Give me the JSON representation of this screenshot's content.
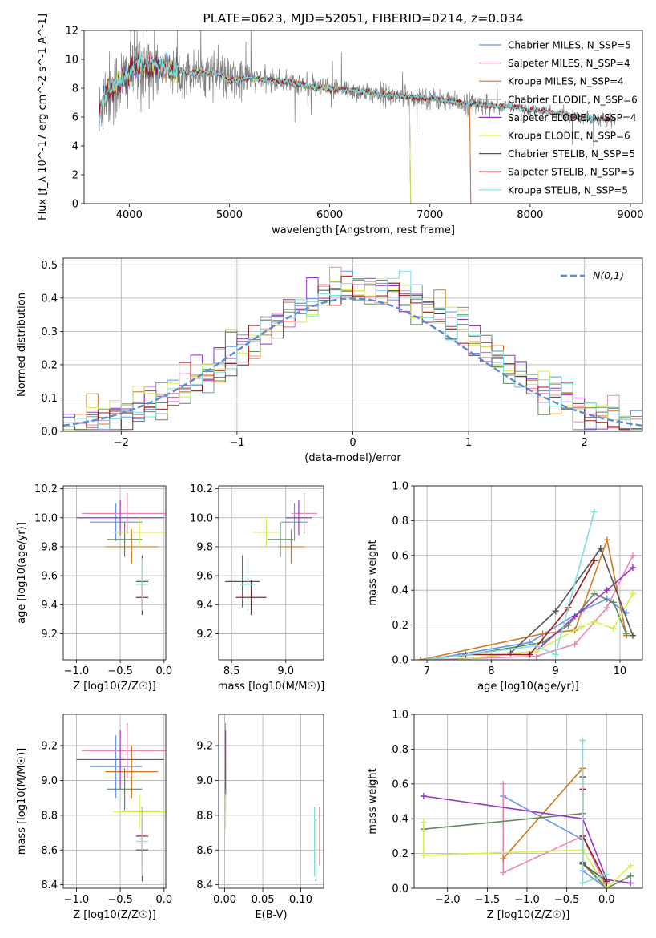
{
  "chart_data": [
    {
      "id": "spectrum",
      "type": "line",
      "title": "PLATE=0623, MJD=52051, FIBERID=0214, z=0.034",
      "xlabel": "wavelength [Angstrom, rest frame]",
      "ylabel": "Flux [f_λ 10^-17 erg cm^-2 s^-1 A^-1]",
      "xlim": [
        3550,
        9120
      ],
      "ylim": [
        0,
        12
      ],
      "xticks": [
        4000,
        5000,
        6000,
        7000,
        8000,
        9000
      ],
      "yticks": [
        0,
        2,
        4,
        6,
        8,
        10,
        12
      ],
      "grid": false,
      "legend_position": "top-right",
      "legend": [
        {
          "label": "Chabrier MILES, N_SSP=5",
          "color": "#6495ED"
        },
        {
          "label": "Salpeter MILES, N_SSP=4",
          "color": "#E887B8"
        },
        {
          "label": "Kroupa MILES, N_SSP=4",
          "color": "#D2781F"
        },
        {
          "label": "Chabrier ELODIE, N_SSP=6",
          "color": "#5F8A5F"
        },
        {
          "label": "Salpeter ELODIE, N_SSP=4",
          "color": "#9932CC"
        },
        {
          "label": "Kroupa ELODIE, N_SSP=6",
          "color": "#D4F04A"
        },
        {
          "label": "Chabrier STELIB, N_SSP=5",
          "color": "#555555"
        },
        {
          "label": "Salpeter STELIB, N_SSP=5",
          "color": "#A01818"
        },
        {
          "label": "Kroupa STELIB, N_SSP=5",
          "color": "#7FE0E0"
        }
      ],
      "data_color": "#808080",
      "continuum": {
        "x": [
          3700,
          3750,
          3850,
          3950,
          4050,
          4200,
          4400,
          4600,
          4800,
          4900,
          5000,
          5200,
          5400,
          5600,
          5800,
          6000,
          6200,
          6400,
          6600,
          6800,
          7000,
          7200,
          7400,
          7600,
          7800,
          8000,
          8200,
          8400,
          8600,
          8800
        ],
        "y": [
          6.0,
          7.6,
          8.1,
          8.6,
          9.5,
          9.6,
          9.3,
          9.1,
          9.1,
          9.0,
          8.5,
          8.7,
          8.55,
          8.4,
          8.1,
          7.95,
          7.85,
          7.7,
          7.5,
          7.4,
          7.3,
          7.05,
          6.95,
          6.8,
          6.7,
          6.5,
          6.35,
          6.1,
          5.9,
          5.8
        ]
      },
      "model_cutoffs": {
        "ELODIE_red_end": 6800,
        "MILES_red_end": 7400
      },
      "observed_range": [
        3700,
        8850
      ]
    },
    {
      "id": "residuals",
      "type": "histogram",
      "xlabel": "(data-model)/error",
      "ylabel": "Normed distribution",
      "xlim": [
        -2.5,
        2.5
      ],
      "ylim": [
        0,
        0.52
      ],
      "xticks": [
        -2,
        -1,
        0,
        1,
        2
      ],
      "yticks": [
        0.0,
        0.1,
        0.2,
        0.3,
        0.4,
        0.5
      ],
      "grid": true,
      "legend_position": "top-right",
      "reference": {
        "label": "N(0,1)",
        "color": "#5B8BD6",
        "mean": 0,
        "sigma": 1
      },
      "bin_width": 0.1
    },
    {
      "id": "age_vs_Z",
      "type": "errorbar",
      "xlabel": "Z [log10(Z/Z☉)]",
      "ylabel": "age [log10(age/yr)]",
      "xlim": [
        -1.15,
        0.02
      ],
      "ylim": [
        9.02,
        10.22
      ],
      "xticks": [
        -1.0,
        -0.5,
        0.0
      ],
      "yticks": [
        9.2,
        9.4,
        9.6,
        9.8,
        10.0,
        10.2
      ],
      "grid": true,
      "points": [
        {
          "model": "Chabrier MILES",
          "x": -0.55,
          "y": 9.97,
          "xerr": 0.3,
          "yerr": 0.13
        },
        {
          "model": "Salpeter MILES",
          "x": -0.42,
          "y": 10.03,
          "xerr": 0.52,
          "yerr": 0.14
        },
        {
          "model": "Kroupa MILES",
          "x": -0.37,
          "y": 9.8,
          "xerr": 0.3,
          "yerr": 0.12
        },
        {
          "model": "Chabrier ELODIE",
          "x": -0.45,
          "y": 9.85,
          "xerr": 0.2,
          "yerr": 0.12
        },
        {
          "model": "Salpeter ELODIE",
          "x": -0.5,
          "y": 10.0,
          "xerr": 0.5,
          "yerr": 0.12
        },
        {
          "model": "Kroupa ELODIE",
          "x": -0.28,
          "y": 9.9,
          "xerr": 0.3,
          "yerr": 0.1
        },
        {
          "model": "Chabrier STELIB",
          "x": -0.25,
          "y": 9.56,
          "xerr": 0.07,
          "yerr": 0.18
        },
        {
          "model": "Salpeter STELIB",
          "x": -0.25,
          "y": 9.45,
          "xerr": 0.07,
          "yerr": 0.12
        },
        {
          "model": "Kroupa STELIB",
          "x": -0.25,
          "y": 9.54,
          "xerr": 0.07,
          "yerr": 0.18
        }
      ]
    },
    {
      "id": "age_vs_mass",
      "type": "errorbar",
      "xlabel": "mass [log10(M/M☉)]",
      "ylabel": "",
      "xlim": [
        8.38,
        9.35
      ],
      "ylim": [
        9.02,
        10.22
      ],
      "xticks": [
        8.5,
        9.0
      ],
      "yticks": [
        9.2,
        9.4,
        9.6,
        9.8,
        10.0,
        10.2
      ],
      "grid": true,
      "points": [
        {
          "model": "Chabrier MILES",
          "x": 9.08,
          "y": 9.97,
          "xerr": 0.12,
          "yerr": 0.13
        },
        {
          "model": "Salpeter MILES",
          "x": 9.17,
          "y": 10.03,
          "xerr": 0.12,
          "yerr": 0.14
        },
        {
          "model": "Kroupa MILES",
          "x": 9.05,
          "y": 9.8,
          "xerr": 0.12,
          "yerr": 0.12
        },
        {
          "model": "Chabrier ELODIE",
          "x": 8.95,
          "y": 9.85,
          "xerr": 0.12,
          "yerr": 0.12
        },
        {
          "model": "Salpeter ELODIE",
          "x": 9.12,
          "y": 10.0,
          "xerr": 0.12,
          "yerr": 0.12
        },
        {
          "model": "Kroupa ELODIE",
          "x": 8.82,
          "y": 9.9,
          "xerr": 0.12,
          "yerr": 0.1
        },
        {
          "model": "Chabrier STELIB",
          "x": 8.6,
          "y": 9.56,
          "xerr": 0.16,
          "yerr": 0.18
        },
        {
          "model": "Salpeter STELIB",
          "x": 8.68,
          "y": 9.45,
          "xerr": 0.14,
          "yerr": 0.12
        },
        {
          "model": "Kroupa STELIB",
          "x": 8.65,
          "y": 9.54,
          "xerr": 0.07,
          "yerr": 0.18
        }
      ]
    },
    {
      "id": "weight_vs_age",
      "type": "line",
      "xlabel": "age [log10(age/yr)]",
      "ylabel": "mass weight",
      "xlim": [
        6.8,
        10.35
      ],
      "ylim": [
        0,
        1.0
      ],
      "xticks": [
        7,
        8,
        9,
        10
      ],
      "yticks": [
        0.0,
        0.2,
        0.4,
        0.6,
        0.8,
        1.0
      ],
      "grid": true,
      "series": [
        {
          "model": "Chabrier MILES",
          "x": [
            7.0,
            8.6,
            9.4,
            9.8,
            10.1
          ],
          "y": [
            0.0,
            0.1,
            0.28,
            0.35,
            0.27
          ]
        },
        {
          "model": "Salpeter MILES",
          "x": [
            7.0,
            8.7,
            9.3,
            9.8,
            10.2
          ],
          "y": [
            0.0,
            0.02,
            0.09,
            0.3,
            0.6
          ]
        },
        {
          "model": "Kroupa MILES",
          "x": [
            6.9,
            8.8,
            9.3,
            9.8,
            10.1
          ],
          "y": [
            0.0,
            0.15,
            0.17,
            0.69,
            0.14
          ]
        },
        {
          "model": "Chabrier ELODIE",
          "x": [
            7.5,
            8.8,
            9.2,
            9.6,
            9.9,
            10.1
          ],
          "y": [
            0.02,
            0.1,
            0.2,
            0.38,
            0.33,
            0.15
          ]
        },
        {
          "model": "Salpeter ELODIE",
          "x": [
            7.5,
            8.7,
            9.3,
            9.8,
            10.2
          ],
          "y": [
            0.0,
            0.05,
            0.25,
            0.4,
            0.53
          ]
        },
        {
          "model": "Kroupa ELODIE",
          "x": [
            7.5,
            8.7,
            9.4,
            9.6,
            9.9,
            10.2
          ],
          "y": [
            0.0,
            0.05,
            0.19,
            0.22,
            0.18,
            0.38
          ]
        },
        {
          "model": "Chabrier STELIB",
          "x": [
            8.3,
            9.0,
            9.7,
            10.2
          ],
          "y": [
            0.04,
            0.28,
            0.64,
            0.14
          ]
        },
        {
          "model": "Salpeter STELIB",
          "x": [
            7.6,
            8.6,
            9.2,
            9.6
          ],
          "y": [
            0.03,
            0.03,
            0.3,
            0.57
          ]
        },
        {
          "model": "Kroupa STELIB",
          "x": [
            7.0,
            8.7,
            9.0,
            9.6
          ],
          "y": [
            0.0,
            0.08,
            0.03,
            0.85
          ]
        }
      ]
    },
    {
      "id": "mass_vs_Z",
      "type": "errorbar",
      "xlabel": "Z [log10(Z/Z☉)]",
      "ylabel": "mass [log10(M/M☉)]",
      "xlim": [
        -1.15,
        0.02
      ],
      "ylim": [
        8.38,
        9.38
      ],
      "xticks": [
        -1.0,
        -0.5,
        0.0
      ],
      "yticks": [
        8.4,
        8.6,
        8.8,
        9.0,
        9.2
      ],
      "grid": true,
      "points": [
        {
          "model": "Chabrier MILES",
          "x": -0.55,
          "y": 9.08,
          "xerr": 0.3,
          "yerr": 0.18
        },
        {
          "model": "Salpeter MILES",
          "x": -0.42,
          "y": 9.17,
          "xerr": 0.52,
          "yerr": 0.16
        },
        {
          "model": "Kroupa MILES",
          "x": -0.37,
          "y": 9.05,
          "xerr": 0.3,
          "yerr": 0.15
        },
        {
          "model": "Chabrier ELODIE",
          "x": -0.45,
          "y": 8.95,
          "xerr": 0.2,
          "yerr": 0.12
        },
        {
          "model": "Salpeter ELODIE",
          "x": -0.5,
          "y": 9.12,
          "xerr": 0.5,
          "yerr": 0.17
        },
        {
          "model": "Kroupa ELODIE",
          "x": -0.28,
          "y": 8.82,
          "xerr": 0.3,
          "yerr": 0.1
        },
        {
          "model": "Chabrier STELIB",
          "x": -0.25,
          "y": 8.6,
          "xerr": 0.07,
          "yerr": 0.18
        },
        {
          "model": "Salpeter STELIB",
          "x": -0.25,
          "y": 8.68,
          "xerr": 0.07,
          "yerr": 0.17
        },
        {
          "model": "Kroupa STELIB",
          "x": -0.25,
          "y": 8.65,
          "xerr": 0.07,
          "yerr": 0.2
        }
      ]
    },
    {
      "id": "mass_vs_ebv",
      "type": "errorbar",
      "xlabel": "E(B-V)",
      "ylabel": "",
      "xlim": [
        -0.008,
        0.13
      ],
      "ylim": [
        8.38,
        9.38
      ],
      "xticks": [
        0.0,
        0.05,
        0.1
      ],
      "yticks": [
        8.4,
        8.6,
        8.8,
        9.0,
        9.2
      ],
      "grid": true,
      "points": [
        {
          "model": "Chabrier MILES",
          "x": 0.001,
          "y": 9.08,
          "xerr": 0,
          "yerr": 0.18
        },
        {
          "model": "Salpeter MILES",
          "x": 0.001,
          "y": 9.17,
          "xerr": 0,
          "yerr": 0.16
        },
        {
          "model": "Kroupa MILES",
          "x": 0.001,
          "y": 9.05,
          "xerr": 0,
          "yerr": 0.15
        },
        {
          "model": "Chabrier ELODIE",
          "x": 0.001,
          "y": 8.95,
          "xerr": 0,
          "yerr": 0.12
        },
        {
          "model": "Salpeter ELODIE",
          "x": 0.001,
          "y": 9.12,
          "xerr": 0,
          "yerr": 0.17
        },
        {
          "model": "Kroupa ELODIE",
          "x": 0.001,
          "y": 8.82,
          "xerr": 0,
          "yerr": 0.1
        },
        {
          "model": "Chabrier STELIB",
          "x": 0.12,
          "y": 8.6,
          "xerr": 0,
          "yerr": 0.18
        },
        {
          "model": "Salpeter STELIB",
          "x": 0.125,
          "y": 8.68,
          "xerr": 0,
          "yerr": 0.17
        },
        {
          "model": "Kroupa STELIB",
          "x": 0.118,
          "y": 8.65,
          "xerr": 0,
          "yerr": 0.2
        }
      ]
    },
    {
      "id": "weight_vs_Z",
      "type": "line",
      "xlabel": "Z [log10(Z/Z☉)]",
      "ylabel": "mass weight",
      "xlim": [
        -2.42,
        0.45
      ],
      "ylim": [
        0,
        1.0
      ],
      "xticks": [
        -2.0,
        -1.5,
        -1.0,
        -0.5,
        0.0
      ],
      "yticks": [
        0.0,
        0.2,
        0.4,
        0.6,
        0.8,
        1.0
      ],
      "grid": true,
      "series": [
        {
          "model": "Chabrier MILES",
          "x": [
            -1.3,
            -0.3,
            -0.3,
            0.0
          ],
          "y": [
            0.53,
            0.28,
            0.1,
            0.0
          ]
        },
        {
          "model": "Salpeter MILES",
          "x": [
            -1.3,
            -1.3,
            -0.3,
            0.0
          ],
          "y": [
            0.6,
            0.09,
            0.3,
            0.0
          ]
        },
        {
          "model": "Kroupa MILES",
          "x": [
            -1.3,
            -0.3,
            -0.3,
            0.0
          ],
          "y": [
            0.17,
            0.69,
            0.14,
            0.0
          ]
        },
        {
          "model": "Chabrier ELODIE",
          "x": [
            -2.3,
            -0.3,
            -0.3,
            0.0,
            0.3
          ],
          "y": [
            0.34,
            0.43,
            0.15,
            0.0,
            0.07
          ]
        },
        {
          "model": "Salpeter ELODIE",
          "x": [
            -2.3,
            -0.3,
            0.0,
            0.3
          ],
          "y": [
            0.53,
            0.4,
            0.05,
            0.03
          ]
        },
        {
          "model": "Kroupa ELODIE",
          "x": [
            -2.3,
            -2.3,
            -0.3,
            0.0,
            0.3
          ],
          "y": [
            0.38,
            0.19,
            0.22,
            0.0,
            0.13
          ]
        },
        {
          "model": "Chabrier STELIB",
          "x": [
            -0.3,
            -0.3,
            0.0
          ],
          "y": [
            0.64,
            0.14,
            0.04
          ]
        },
        {
          "model": "Salpeter STELIB",
          "x": [
            -0.3,
            -0.3,
            0.0
          ],
          "y": [
            0.57,
            0.3,
            0.03
          ]
        },
        {
          "model": "Kroupa STELIB",
          "x": [
            -0.3,
            -0.3,
            0.0
          ],
          "y": [
            0.85,
            0.03,
            0.08
          ]
        }
      ]
    }
  ]
}
